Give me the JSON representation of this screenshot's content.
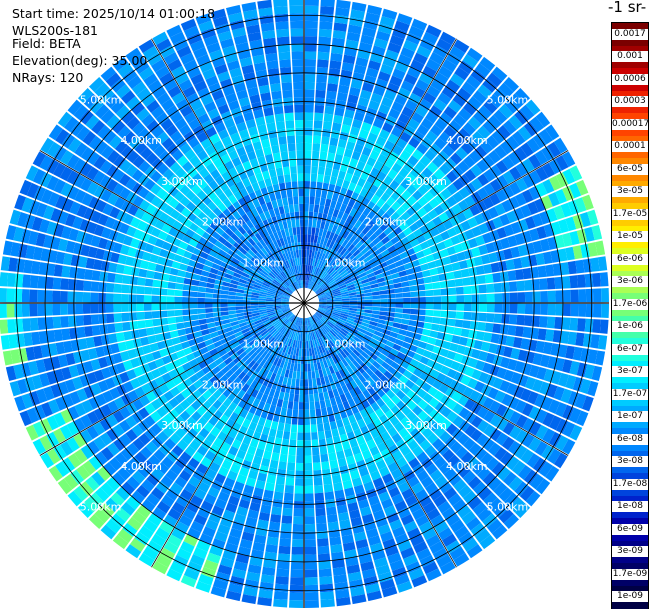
{
  "meta": {
    "start_time": "Start time: 2025/10/14 01:00:18",
    "instrument": "WLS200s-181",
    "field": "Field: BETA",
    "elevation": "Elevation(deg): 35.00",
    "nrays": "NRays: 120"
  },
  "colorbar": {
    "title": "-1 sr-",
    "labels": [
      "0.0017",
      "0.001",
      "0.0006",
      "0.0003",
      "0.00017",
      "0.0001",
      "6e-05",
      "3e-05",
      "1.7e-05",
      "1e-05",
      "6e-06",
      "3e-06",
      "1.7e-06",
      "1e-06",
      "6e-07",
      "3e-07",
      "1.7e-07",
      "1e-07",
      "6e-08",
      "3e-08",
      "1.7e-08",
      "1e-08",
      "6e-09",
      "3e-09",
      "1.7e-09",
      "1e-09"
    ],
    "colors": [
      "#7a0000",
      "#a00000",
      "#cc0000",
      "#ee2200",
      "#ff4400",
      "#ff6600",
      "#ff8800",
      "#ffaa00",
      "#ffcc00",
      "#ffee00",
      "#ddff22",
      "#aaff55",
      "#77ff77",
      "#44ffaa",
      "#22ffdd",
      "#00eeff",
      "#00ccff",
      "#00aaff",
      "#0088ff",
      "#0066ee",
      "#0044dd",
      "#0022cc",
      "#0000aa",
      "#000088",
      "#000066",
      "#000044"
    ]
  },
  "chart_data": {
    "type": "heatmap",
    "projection": "polar-ppi",
    "n_rays": 120,
    "range_km": [
      0,
      5.3
    ],
    "range_ring_labels": [
      "1.00km",
      "2.00km",
      "3.00km",
      "4.00km",
      "5.00km"
    ],
    "range_ring_values_km": [
      1,
      2,
      3,
      4,
      5
    ],
    "dominant_levels": {
      "inner_0_to_2km": "3e-08",
      "middle_2_to_3.2km": "1.7e-07",
      "outer_3.2_to_5.3km": "3e-08",
      "south_west_edge_5km": "1.7e-06",
      "north_near_center": "1e-08"
    },
    "colormap_ref": "colorbar"
  }
}
